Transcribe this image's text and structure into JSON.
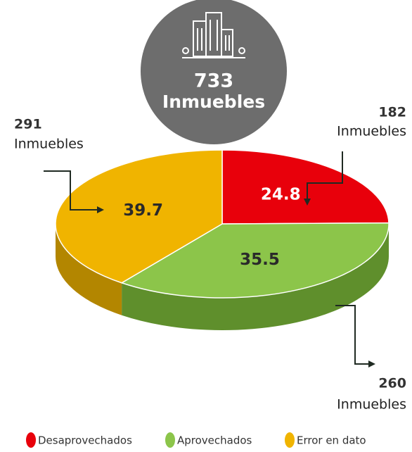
{
  "chart_data": {
    "type": "pie3d",
    "center": {
      "count": 733,
      "label": "Inmuebles"
    },
    "categories": [
      "Desaprovechados",
      "Aprovechados",
      "Error en dato"
    ],
    "values": [
      24.8,
      35.5,
      39.7
    ],
    "colors": [
      "#e8000b",
      "#8cc54a",
      "#f0b400"
    ],
    "side_colors": [
      "#a80008",
      "#5f8f2c",
      "#b38600"
    ],
    "annotations": [
      {
        "count": 182,
        "label": "Inmuebles"
      },
      {
        "count": 260,
        "label": "Inmuebles"
      },
      {
        "count": 291,
        "label": "Inmuebles"
      }
    ]
  }
}
